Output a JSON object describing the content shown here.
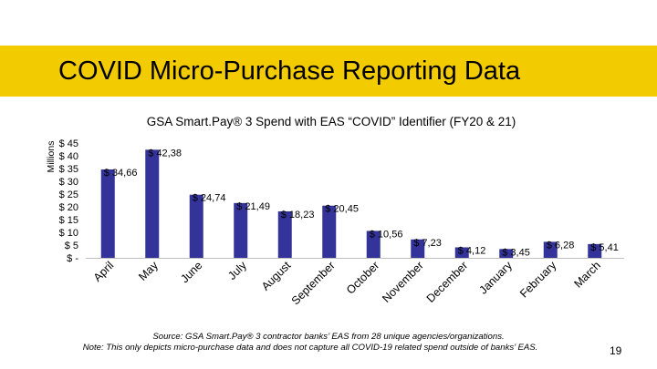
{
  "slide": {
    "title": "COVID Micro-Purchase Reporting Data",
    "page_number": "19",
    "banner_color": "#f2cb00"
  },
  "chart_data": {
    "type": "bar",
    "title": "GSA Smart.Pay® 3 Spend with EAS “COVID” Identifier (FY20 & 21)",
    "ylabel": "Millions",
    "ylim": [
      0,
      45
    ],
    "y_ticks": [
      0,
      5,
      10,
      15,
      20,
      25,
      30,
      35,
      40,
      45
    ],
    "y_tick_labels": [
      "$ -",
      "$ 5",
      "$ 10",
      "$ 15",
      "$ 20",
      "$ 25",
      "$ 30",
      "$ 35",
      "$ 40",
      "$ 45"
    ],
    "categories": [
      "April",
      "May",
      "June",
      "July",
      "August",
      "September",
      "October",
      "November",
      "December",
      "January",
      "February",
      "March"
    ],
    "values": [
      34.66,
      42.38,
      24.74,
      21.49,
      18.23,
      20.45,
      10.56,
      7.23,
      4.12,
      3.45,
      6.28,
      5.41
    ],
    "data_labels": [
      "$ 34,66",
      "$ 42,38",
      "$ 24,74",
      "$ 21,49",
      "$ 18,23",
      "$ 20,45",
      "$ 10,56",
      "$ 7,23",
      "$ 4,12",
      "$ 3,45",
      "$ 6,28",
      "$ 5,41"
    ],
    "bar_color": "#333399",
    "grid": false,
    "legend": "none"
  },
  "footnotes": {
    "source": "Source: GSA Smart.Pay® 3 contractor banks’ EAS from 28 unique agencies/organizations.",
    "note": "Note: This only depicts micro-purchase data and does not capture all COVID-19 related spend outside of banks’ EAS."
  }
}
